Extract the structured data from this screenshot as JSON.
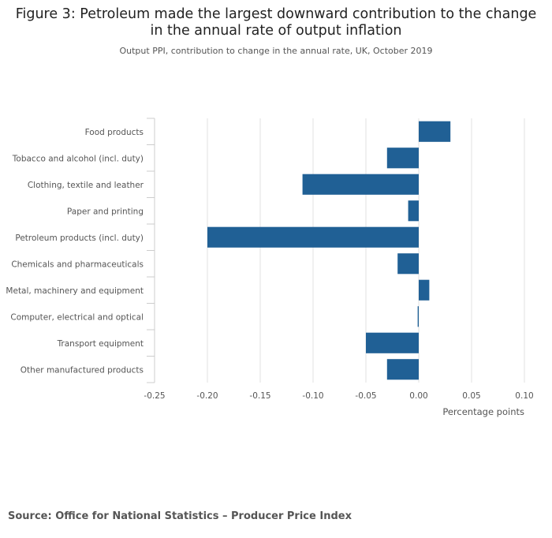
{
  "chart_data": {
    "type": "bar",
    "orientation": "horizontal",
    "title_line1": "Figure 3: Petroleum made the largest downward contribution to the change",
    "title_line2": "in the annual rate of output inflation",
    "subtitle": "Output PPI, contribution to change in the annual rate, UK, October 2019",
    "xlabel": "Percentage points",
    "ylabel": "",
    "xlim": [
      -0.25,
      0.1
    ],
    "xticks": [
      -0.25,
      -0.2,
      -0.15,
      -0.1,
      -0.05,
      0,
      0.05,
      0.1
    ],
    "xtick_labels": [
      "-0.25",
      "-0.20",
      "-0.15",
      "-0.10",
      "-0.05",
      "0.00",
      "0.05",
      "0.10"
    ],
    "grid": true,
    "bar_color": "#206095",
    "categories": [
      "Food products",
      "Tobacco and alcohol (incl. duty)",
      "Clothing, textile and leather",
      "Paper and printing",
      "Petroleum products (incl. duty)",
      "Chemicals and pharmaceuticals",
      "Metal, machinery and equipment",
      "Computer, electrical and optical",
      "Transport equipment",
      "Other manufactured products"
    ],
    "values": [
      0.03,
      -0.03,
      -0.11,
      -0.01,
      -0.2,
      -0.02,
      0.01,
      -0.001,
      -0.05,
      -0.03
    ]
  },
  "source": "Source: Office for National Statistics – Producer Price Index"
}
